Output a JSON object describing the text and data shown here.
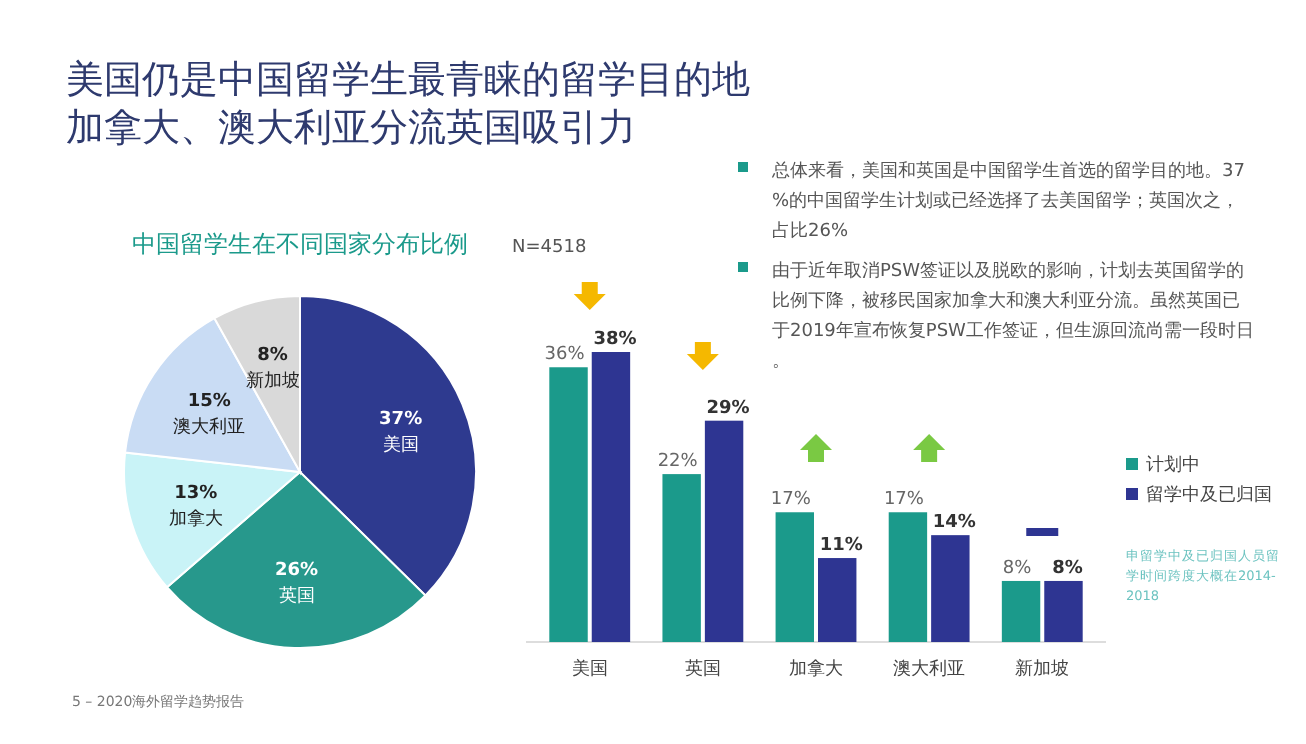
{
  "chart_data": [
    {
      "type": "other",
      "title": "美国仍是中国留学生最青睐的留学目的地",
      "subtitle": "加拿大、澳大利亚分流英国吸引力",
      "annotations": [
        "总体来看，美国和英国是中国留学生首选的留学目的地。37%的中国留学生计划或已经选择了去美国留学；英国次之，占比26%",
        "由于近年取消PSW签证以及脱欧的影响，计划去英国留学的比例下降，被移民国家加拿大和澳大利亚分流。虽然英国已于2019年宣布恢复PSW工作签证，但生源回流尚需一段时日。",
        "5 – 2020海外留学趋势报告"
      ]
    },
    {
      "type": "pie",
      "title": "中国留学生在不同国家分布比例",
      "categories": [
        "美国",
        "英国",
        "加拿大",
        "澳大利亚",
        "新加坡"
      ],
      "values": [
        37,
        26,
        13,
        15,
        8
      ],
      "value_labels": [
        "37%",
        "26%",
        "13%",
        "15%",
        "8%"
      ],
      "colors": [
        "#2e3a8f",
        "#27988c",
        "#c9f3f7",
        "#c9dcf4",
        "#d9d9d9"
      ]
    },
    {
      "type": "bar",
      "categories": [
        "美国",
        "英国",
        "加拿大",
        "澳大利亚",
        "新加坡"
      ],
      "legend": "right",
      "series": [
        {
          "name": "计划中",
          "color": "#1b9a8b",
          "values": [
            36,
            22,
            17,
            17,
            8
          ],
          "value_labels": [
            "36%",
            "22%",
            "17%",
            "17%",
            "8%"
          ]
        },
        {
          "name": "留学中及已归国",
          "color": "#2e3592",
          "values": [
            38,
            29,
            11,
            14,
            8
          ],
          "value_labels": [
            "38%",
            "29%",
            "11%",
            "14%",
            "8%"
          ]
        }
      ],
      "annotations": [
        "N=4518",
        "申留学中及已归国人员留学时间跨度大概在2014-2018"
      ]
    }
  ]
}
